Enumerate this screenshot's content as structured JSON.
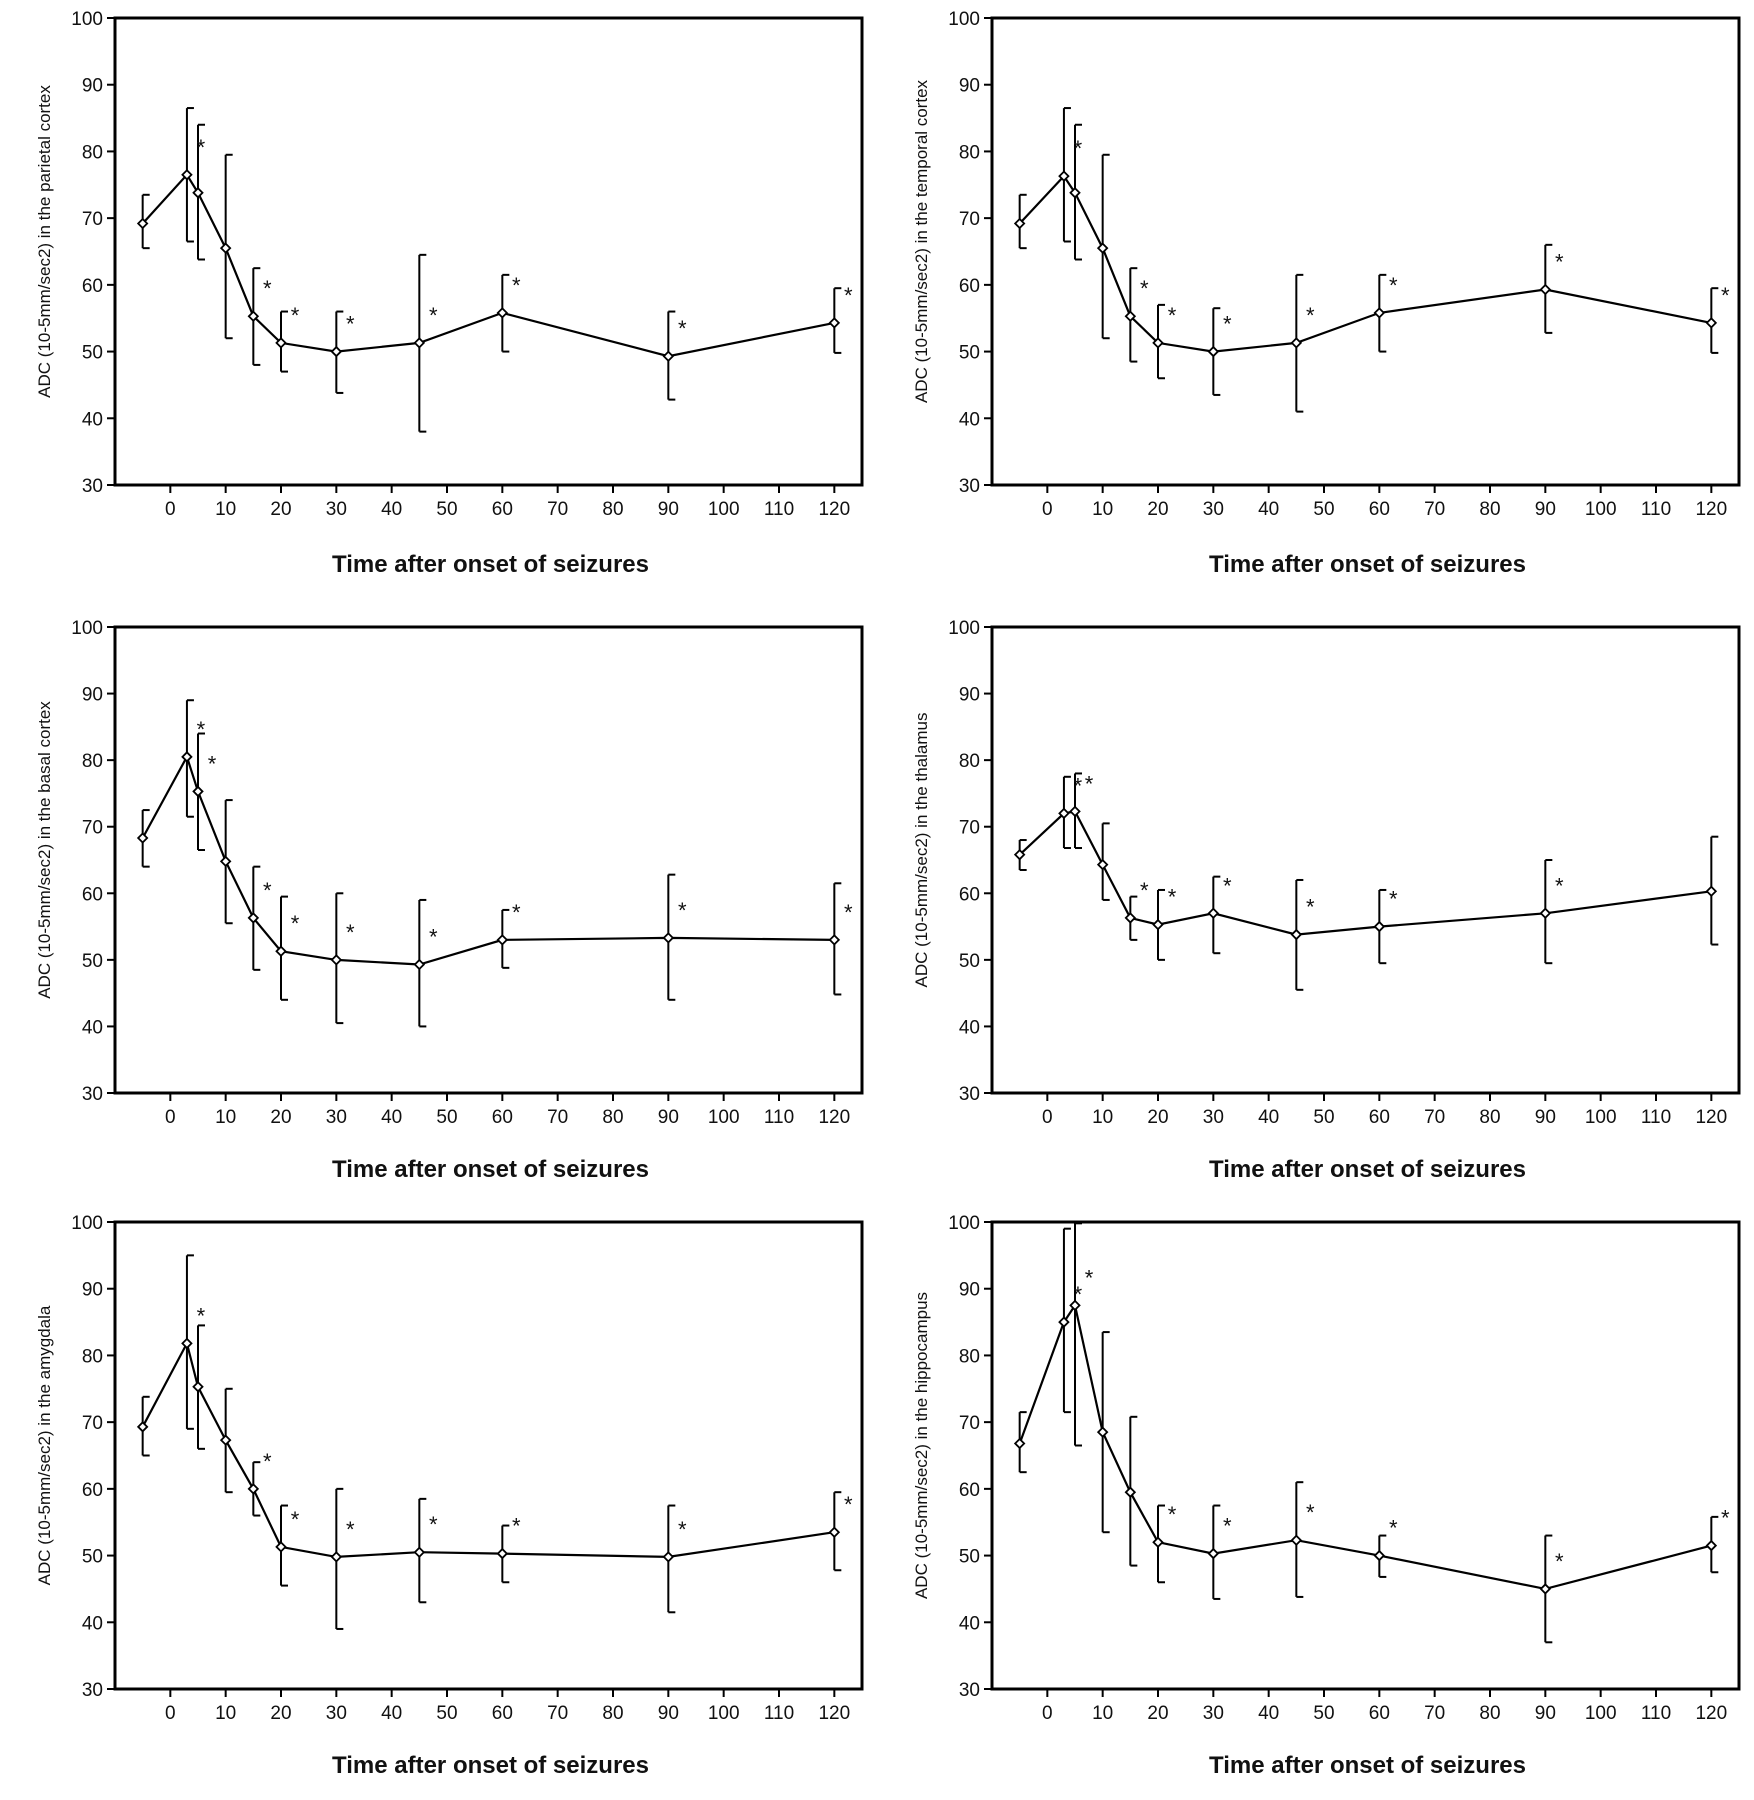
{
  "chart_data": [
    {
      "type": "line",
      "xlabel": "Time after onset of seizures",
      "ylabel": "ADC (10-5mm/sec2) in the parietal cortex",
      "ylim": [
        30,
        100
      ],
      "yticks": [
        30,
        40,
        50,
        60,
        70,
        80,
        90,
        100
      ],
      "xticks": [
        0,
        10,
        20,
        30,
        40,
        50,
        60,
        70,
        80,
        90,
        100,
        110,
        120
      ],
      "grid": false,
      "points": [
        {
          "x": -5,
          "y": 69.2,
          "err_hi": 73.5,
          "err_lo": 65.5,
          "star": false
        },
        {
          "x": 3,
          "y": 76.5,
          "err_hi": 86.5,
          "err_lo": 66.5,
          "star": true
        },
        {
          "x": 5,
          "y": 73.8,
          "err_hi": 84.0,
          "err_lo": 63.8,
          "star": false
        },
        {
          "x": 10,
          "y": 65.5,
          "err_hi": 79.5,
          "err_lo": 52.0,
          "star": false
        },
        {
          "x": 15,
          "y": 55.3,
          "err_hi": 62.5,
          "err_lo": 48.0,
          "star": true
        },
        {
          "x": 20,
          "y": 51.3,
          "err_hi": 56.0,
          "err_lo": 47.0,
          "star": true
        },
        {
          "x": 30,
          "y": 50.0,
          "err_hi": 56.0,
          "err_lo": 43.8,
          "star": true
        },
        {
          "x": 45,
          "y": 51.3,
          "err_hi": 64.5,
          "err_lo": 38.0,
          "star": true
        },
        {
          "x": 60,
          "y": 55.8,
          "err_hi": 61.5,
          "err_lo": 50.0,
          "star": true
        },
        {
          "x": 90,
          "y": 49.3,
          "err_hi": 56.0,
          "err_lo": 42.8,
          "star": true
        },
        {
          "x": 120,
          "y": 54.3,
          "err_hi": 59.5,
          "err_lo": 49.8,
          "star": true
        }
      ]
    },
    {
      "type": "line",
      "xlabel": "Time after onset of seizures",
      "ylabel": "ADC (10-5mm/sec2) in the temporal cortex",
      "ylim": [
        30,
        100
      ],
      "yticks": [
        30,
        40,
        50,
        60,
        70,
        80,
        90,
        100
      ],
      "xticks": [
        0,
        10,
        20,
        30,
        40,
        50,
        60,
        70,
        80,
        90,
        100,
        110,
        120
      ],
      "grid": false,
      "points": [
        {
          "x": -5,
          "y": 69.2,
          "err_hi": 73.5,
          "err_lo": 65.5,
          "star": false
        },
        {
          "x": 3,
          "y": 76.3,
          "err_hi": 86.5,
          "err_lo": 66.5,
          "star": true
        },
        {
          "x": 5,
          "y": 73.8,
          "err_hi": 84.0,
          "err_lo": 63.8,
          "star": false
        },
        {
          "x": 10,
          "y": 65.5,
          "err_hi": 79.5,
          "err_lo": 52.0,
          "star": false
        },
        {
          "x": 15,
          "y": 55.3,
          "err_hi": 62.5,
          "err_lo": 48.5,
          "star": true
        },
        {
          "x": 20,
          "y": 51.3,
          "err_hi": 57.0,
          "err_lo": 46.0,
          "star": true
        },
        {
          "x": 30,
          "y": 50.0,
          "err_hi": 56.5,
          "err_lo": 43.5,
          "star": true
        },
        {
          "x": 45,
          "y": 51.3,
          "err_hi": 61.5,
          "err_lo": 41.0,
          "star": true
        },
        {
          "x": 60,
          "y": 55.8,
          "err_hi": 61.5,
          "err_lo": 50.0,
          "star": true
        },
        {
          "x": 90,
          "y": 59.3,
          "err_hi": 66.0,
          "err_lo": 52.8,
          "star": true
        },
        {
          "x": 120,
          "y": 54.3,
          "err_hi": 59.5,
          "err_lo": 49.8,
          "star": true
        }
      ]
    },
    {
      "type": "line",
      "xlabel": "Time after onset of seizures",
      "ylabel": "ADC (10-5mm/sec2) in the basal cortex",
      "ylim": [
        30,
        100
      ],
      "yticks": [
        30,
        40,
        50,
        60,
        70,
        80,
        90,
        100
      ],
      "xticks": [
        0,
        10,
        20,
        30,
        40,
        50,
        60,
        70,
        80,
        90,
        100,
        110,
        120
      ],
      "grid": false,
      "points": [
        {
          "x": -5,
          "y": 68.3,
          "err_hi": 72.5,
          "err_lo": 64.0,
          "star": false
        },
        {
          "x": 3,
          "y": 80.5,
          "err_hi": 89.0,
          "err_lo": 71.5,
          "star": true
        },
        {
          "x": 5,
          "y": 75.3,
          "err_hi": 84.0,
          "err_lo": 66.5,
          "star": true
        },
        {
          "x": 10,
          "y": 64.8,
          "err_hi": 74.0,
          "err_lo": 55.5,
          "star": false
        },
        {
          "x": 15,
          "y": 56.3,
          "err_hi": 64.0,
          "err_lo": 48.5,
          "star": true
        },
        {
          "x": 20,
          "y": 51.3,
          "err_hi": 59.5,
          "err_lo": 44.0,
          "star": true
        },
        {
          "x": 30,
          "y": 50.0,
          "err_hi": 60.0,
          "err_lo": 40.5,
          "star": true
        },
        {
          "x": 45,
          "y": 49.3,
          "err_hi": 59.0,
          "err_lo": 40.0,
          "star": true
        },
        {
          "x": 60,
          "y": 53.0,
          "err_hi": 57.5,
          "err_lo": 48.8,
          "star": true
        },
        {
          "x": 90,
          "y": 53.3,
          "err_hi": 62.8,
          "err_lo": 44.0,
          "star": true
        },
        {
          "x": 120,
          "y": 53.0,
          "err_hi": 61.5,
          "err_lo": 44.8,
          "star": true
        }
      ]
    },
    {
      "type": "line",
      "xlabel": "Time after onset of seizures",
      "ylabel": "ADC (10-5mm/sec2) in the thalamus",
      "ylim": [
        30,
        100
      ],
      "yticks": [
        30,
        40,
        50,
        60,
        70,
        80,
        90,
        100
      ],
      "xticks": [
        0,
        10,
        20,
        30,
        40,
        50,
        60,
        70,
        80,
        90,
        100,
        110,
        120
      ],
      "grid": false,
      "points": [
        {
          "x": -5,
          "y": 65.8,
          "err_hi": 68.0,
          "err_lo": 63.5,
          "star": false
        },
        {
          "x": 3,
          "y": 72.0,
          "err_hi": 77.5,
          "err_lo": 66.8,
          "star": true
        },
        {
          "x": 5,
          "y": 72.3,
          "err_hi": 78.0,
          "err_lo": 66.8,
          "star": true
        },
        {
          "x": 10,
          "y": 64.3,
          "err_hi": 70.5,
          "err_lo": 59.0,
          "star": false
        },
        {
          "x": 15,
          "y": 56.3,
          "err_hi": 59.5,
          "err_lo": 53.0,
          "star": true
        },
        {
          "x": 20,
          "y": 55.3,
          "err_hi": 60.5,
          "err_lo": 50.0,
          "star": true
        },
        {
          "x": 30,
          "y": 57.0,
          "err_hi": 62.5,
          "err_lo": 51.0,
          "star": true
        },
        {
          "x": 45,
          "y": 53.8,
          "err_hi": 62.0,
          "err_lo": 45.5,
          "star": true
        },
        {
          "x": 60,
          "y": 55.0,
          "err_hi": 60.5,
          "err_lo": 49.5,
          "star": true
        },
        {
          "x": 90,
          "y": 57.0,
          "err_hi": 65.0,
          "err_lo": 49.5,
          "star": true
        },
        {
          "x": 120,
          "y": 60.3,
          "err_hi": 68.5,
          "err_lo": 52.3,
          "star": false
        }
      ]
    },
    {
      "type": "line",
      "xlabel": "Time after onset of seizures",
      "ylabel": "ADC (10-5mm/sec2) in the amygdala",
      "ylim": [
        30,
        100
      ],
      "yticks": [
        30,
        40,
        50,
        60,
        70,
        80,
        90,
        100
      ],
      "xticks": [
        0,
        10,
        20,
        30,
        40,
        50,
        60,
        70,
        80,
        90,
        100,
        110,
        120
      ],
      "grid": false,
      "points": [
        {
          "x": -5,
          "y": 69.3,
          "err_hi": 73.8,
          "err_lo": 65.0,
          "star": false
        },
        {
          "x": 3,
          "y": 81.8,
          "err_hi": 95.0,
          "err_lo": 69.0,
          "star": true
        },
        {
          "x": 5,
          "y": 75.3,
          "err_hi": 84.5,
          "err_lo": 66.0,
          "star": false
        },
        {
          "x": 10,
          "y": 67.3,
          "err_hi": 75.0,
          "err_lo": 59.5,
          "star": false
        },
        {
          "x": 15,
          "y": 60.0,
          "err_hi": 64.0,
          "err_lo": 56.0,
          "star": true
        },
        {
          "x": 20,
          "y": 51.3,
          "err_hi": 57.5,
          "err_lo": 45.5,
          "star": true
        },
        {
          "x": 30,
          "y": 49.8,
          "err_hi": 60.0,
          "err_lo": 39.0,
          "star": true
        },
        {
          "x": 45,
          "y": 50.5,
          "err_hi": 58.5,
          "err_lo": 43.0,
          "star": true
        },
        {
          "x": 60,
          "y": 50.3,
          "err_hi": 54.5,
          "err_lo": 46.0,
          "star": true
        },
        {
          "x": 90,
          "y": 49.8,
          "err_hi": 57.5,
          "err_lo": 41.5,
          "star": true
        },
        {
          "x": 120,
          "y": 53.5,
          "err_hi": 59.5,
          "err_lo": 47.8,
          "star": true
        }
      ]
    },
    {
      "type": "line",
      "xlabel": "Time after onset of seizures",
      "ylabel": "ADC (10-5mm/sec2) in the hippocampus",
      "ylim": [
        30,
        100
      ],
      "yticks": [
        30,
        40,
        50,
        60,
        70,
        80,
        90,
        100
      ],
      "xticks": [
        0,
        10,
        20,
        30,
        40,
        50,
        60,
        70,
        80,
        90,
        100,
        110,
        120
      ],
      "grid": false,
      "points": [
        {
          "x": -5,
          "y": 66.8,
          "err_hi": 71.5,
          "err_lo": 62.5,
          "star": false
        },
        {
          "x": 3,
          "y": 85.0,
          "err_hi": 99.0,
          "err_lo": 71.5,
          "star": true
        },
        {
          "x": 5,
          "y": 87.5,
          "err_hi": 99.8,
          "err_lo": 66.5,
          "star": true
        },
        {
          "x": 10,
          "y": 68.5,
          "err_hi": 83.5,
          "err_lo": 53.5,
          "star": false
        },
        {
          "x": 15,
          "y": 59.5,
          "err_hi": 70.8,
          "err_lo": 48.5,
          "star": false
        },
        {
          "x": 20,
          "y": 52.0,
          "err_hi": 57.5,
          "err_lo": 46.0,
          "star": true
        },
        {
          "x": 30,
          "y": 50.3,
          "err_hi": 57.5,
          "err_lo": 43.5,
          "star": true
        },
        {
          "x": 45,
          "y": 52.3,
          "err_hi": 61.0,
          "err_lo": 43.8,
          "star": true
        },
        {
          "x": 60,
          "y": 50.0,
          "err_hi": 53.0,
          "err_lo": 46.8,
          "star": true
        },
        {
          "x": 90,
          "y": 45.0,
          "err_hi": 53.0,
          "err_lo": 37.0,
          "star": true
        },
        {
          "x": 120,
          "y": 51.5,
          "err_hi": 55.8,
          "err_lo": 47.5,
          "star": true
        }
      ]
    }
  ]
}
